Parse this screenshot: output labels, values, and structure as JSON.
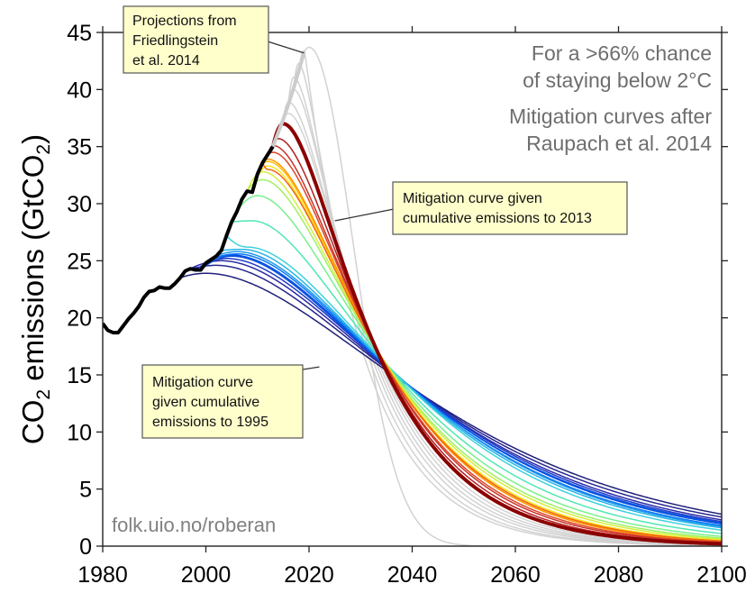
{
  "chart_data": {
    "type": "line",
    "title": "",
    "xlabel": "",
    "ylabel": "CO2 emissions (GtCO2)",
    "ylabel_parts": {
      "main": "CO",
      "sub": "2",
      "rest": " emissions (GtCO",
      "sub2": "2",
      "end": ")"
    },
    "xlim": [
      1980,
      2100
    ],
    "ylim": [
      0,
      45
    ],
    "xticks": [
      1980,
      2000,
      2020,
      2040,
      2060,
      2080,
      2100
    ],
    "yticks": [
      0,
      5,
      10,
      15,
      20,
      25,
      30,
      35,
      40,
      45
    ],
    "grid": false,
    "notes": [
      "For a >66% chance",
      "of staying below 2°C",
      "Mitigation curves after",
      "Raupach et al. 2014"
    ],
    "watermark": "folk.uio.no/roberan",
    "callouts": [
      {
        "id": "projections",
        "lines": [
          "Projections from",
          "Friedlingstein",
          "et al. 2014"
        ],
        "points_to": [
          2019,
          43.2
        ]
      },
      {
        "id": "curve-2013",
        "lines": [
          "Mitigation curve given",
          "cumulative emissions to 2013"
        ],
        "points_to": [
          2025,
          28.5
        ]
      },
      {
        "id": "curve-1995",
        "lines": [
          "Mitigation curve",
          "given cumulative",
          "emissions to 1995"
        ],
        "points_to": [
          2022,
          15.7
        ]
      }
    ],
    "historical": {
      "name": "Historical emissions",
      "color": "#000000",
      "x": [
        1980,
        1981,
        1982,
        1983,
        1984,
        1985,
        1986,
        1987,
        1988,
        1989,
        1990,
        1991,
        1992,
        1993,
        1994,
        1995,
        1996,
        1997,
        1998,
        1999,
        2000,
        2001,
        2002,
        2003,
        2004,
        2005,
        2006,
        2007,
        2008,
        2009,
        2010,
        2011,
        2012,
        2013
      ],
      "y": [
        19.5,
        18.9,
        18.7,
        18.7,
        19.3,
        19.9,
        20.4,
        21.0,
        21.8,
        22.3,
        22.4,
        22.7,
        22.6,
        22.6,
        23.0,
        23.5,
        24.1,
        24.3,
        24.2,
        24.2,
        24.8,
        25.1,
        25.4,
        25.9,
        27.2,
        28.4,
        29.3,
        30.4,
        31.1,
        31.0,
        32.6,
        33.6,
        34.3,
        35.0
      ]
    },
    "projection": {
      "name": "Projections from Friedlingstein et al. 2014",
      "color": "#cccccc",
      "x": [
        2013,
        2014,
        2015,
        2016,
        2017,
        2018,
        2019
      ],
      "y": [
        35.0,
        36.2,
        37.4,
        38.7,
        40.1,
        41.6,
        43.2
      ]
    },
    "highlight_curves": {
      "2013": "#8b0000",
      "1995": "#1a237e"
    },
    "mitigation_curves": [
      {
        "start_year": 1995,
        "color": "#1f1f7a",
        "peak_year": 2000,
        "peak_value": 23.9,
        "value_2034": 15.7,
        "value_2100": 2.8
      },
      {
        "start_year": 1996,
        "color": "#262690",
        "peak_year": 2002,
        "peak_value": 24.6,
        "value_2034": 15.9,
        "value_2100": 2.55
      },
      {
        "start_year": 1997,
        "color": "#2a2aa8",
        "peak_year": 2003,
        "peak_value": 25.0,
        "value_2034": 16.0,
        "value_2100": 2.3
      },
      {
        "start_year": 1998,
        "color": "#1e3cc8",
        "peak_year": 2004,
        "peak_value": 25.2,
        "value_2034": 16.1,
        "value_2100": 2.15
      },
      {
        "start_year": 1999,
        "color": "#0a50dc",
        "peak_year": 2005,
        "peak_value": 25.4,
        "value_2034": 16.1,
        "value_2100": 2.05
      },
      {
        "start_year": 2000,
        "color": "#0050e6",
        "peak_year": 2005,
        "peak_value": 25.5,
        "value_2034": 16.2,
        "value_2100": 1.95
      },
      {
        "start_year": 2001,
        "color": "#0a78f0",
        "peak_year": 2006,
        "peak_value": 25.6,
        "value_2034": 16.2,
        "value_2100": 1.8
      },
      {
        "start_year": 2002,
        "color": "#1e96f0",
        "peak_year": 2006,
        "peak_value": 25.8,
        "value_2034": 16.3,
        "value_2100": 1.7
      },
      {
        "start_year": 2003,
        "color": "#28b4e6",
        "peak_year": 2007,
        "peak_value": 26.0,
        "value_2034": 16.3,
        "value_2100": 1.6
      },
      {
        "start_year": 2004,
        "color": "#3cd2dc",
        "peak_year": 2008,
        "peak_value": 26.2,
        "value_2034": 16.4,
        "value_2100": 1.4
      },
      {
        "start_year": 2005,
        "color": "#50e6b4",
        "peak_year": 2009,
        "peak_value": 28.5,
        "value_2034": 16.5,
        "value_2100": 1.1
      },
      {
        "start_year": 2006,
        "color": "#78f08c",
        "peak_year": 2010,
        "peak_value": 30.7,
        "value_2034": 16.6,
        "value_2100": 0.85
      },
      {
        "start_year": 2007,
        "color": "#a0f064",
        "peak_year": 2011,
        "peak_value": 32.1,
        "value_2034": 16.6,
        "value_2100": 0.7
      },
      {
        "start_year": 2008,
        "color": "#d2f03c",
        "peak_year": 2011,
        "peak_value": 32.8,
        "value_2034": 16.6,
        "value_2100": 0.6
      },
      {
        "start_year": 2009,
        "color": "#f5e61e",
        "peak_year": 2012,
        "peak_value": 33.3,
        "value_2034": 16.6,
        "value_2100": 0.5
      },
      {
        "start_year": 2010,
        "color": "#ffbe0a",
        "peak_year": 2012,
        "peak_value": 33.7,
        "value_2034": 16.6,
        "value_2100": 0.45
      },
      {
        "start_year": 2011,
        "color": "#ff9600",
        "peak_year": 2012,
        "peak_value": 33.9,
        "value_2034": 16.6,
        "value_2100": 0.4
      },
      {
        "start_year": 2011,
        "color": "#f06414",
        "peak_year": 2012,
        "peak_value": 33.0,
        "value_2034": 16.5,
        "value_2100": 0.45
      },
      {
        "start_year": 2012,
        "color": "#dc4628",
        "peak_year": 2013,
        "peak_value": 34.5,
        "value_2034": 16.5,
        "value_2100": 0.35
      },
      {
        "start_year": 2012,
        "color": "#c83228",
        "peak_year": 2013,
        "peak_value": 35.1,
        "value_2034": 16.5,
        "value_2100": 0.3
      },
      {
        "start_year": 2013,
        "color": "#b41e1e",
        "peak_year": 2014,
        "peak_value": 35.7,
        "value_2034": 16.4,
        "value_2100": 0.25
      },
      {
        "start_year": 2013,
        "color": "#8b0000",
        "peak_year": 2015,
        "peak_value": 37.0,
        "value_2034": 16.3,
        "value_2100": 0.2,
        "bold": true
      },
      {
        "start_year": 2014,
        "color": "#d2d2d2",
        "peak_year": 2016,
        "peak_value": 37.9,
        "value_2034": 15.9,
        "value_2100": 0.15
      },
      {
        "start_year": 2015,
        "color": "#d2d2d2",
        "peak_year": 2016,
        "peak_value": 38.9,
        "value_2034": 15.5,
        "value_2100": 0.12
      },
      {
        "start_year": 2016,
        "color": "#d2d2d2",
        "peak_year": 2017,
        "peak_value": 40.0,
        "value_2034": 15.0,
        "value_2100": 0.1
      },
      {
        "start_year": 2016,
        "color": "#d2d2d2",
        "peak_year": 2017,
        "peak_value": 41.1,
        "value_2034": 14.4,
        "value_2100": 0.08
      },
      {
        "start_year": 2017,
        "color": "#d2d2d2",
        "peak_year": 2018,
        "peak_value": 42.3,
        "value_2034": 13.6,
        "value_2100": 0.06
      },
      {
        "start_year": 2018,
        "color": "#d2d2d2",
        "peak_year": 2019,
        "peak_value": 43.4,
        "value_2034": 12.6,
        "value_2100": 0.05
      },
      {
        "start_year": 2019,
        "color": "#d2d2d2",
        "peak_year": 2020,
        "peak_value": 43.7,
        "value_2034": 11.5,
        "value_2100": 0.04
      }
    ]
  }
}
